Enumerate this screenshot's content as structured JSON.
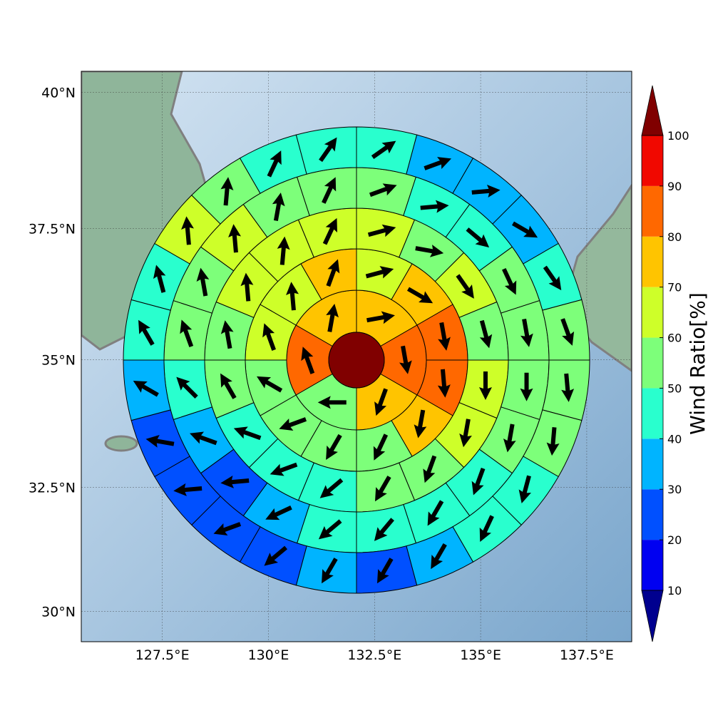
{
  "chart_data": {
    "type": "polar-map",
    "xlim": [
      125.59,
      138.56
    ],
    "ylim": [
      29.38,
      40.38
    ],
    "xticks": [
      {
        "value": 127.5,
        "label": "127.5°E"
      },
      {
        "value": 130,
        "label": "130°E"
      },
      {
        "value": 132.5,
        "label": "132.5°E"
      },
      {
        "value": 135,
        "label": "135°E"
      },
      {
        "value": 137.5,
        "label": "137.5°E"
      }
    ],
    "yticks": [
      {
        "value": 30,
        "label": "30°N"
      },
      {
        "value": 32.5,
        "label": "32.5°N"
      },
      {
        "value": 35,
        "label": "35°N"
      },
      {
        "value": 37.5,
        "label": "37.5°N"
      },
      {
        "value": 40,
        "label": "40°N"
      }
    ],
    "grid": true,
    "colorbar": {
      "label": "Wind Ratio[%]",
      "ticks": [
        10,
        20,
        30,
        40,
        50,
        60,
        70,
        80,
        90,
        100
      ],
      "under_color": "#00008f",
      "over_color": "#800000",
      "colors": [
        "#0000f1",
        "#0050ff",
        "#00b4ff",
        "#29ffce",
        "#7dff7a",
        "#ceff29",
        "#ffc400",
        "#ff6800",
        "#f10800"
      ]
    },
    "center": {
      "ratio": 105
    },
    "rings": [
      {
        "ratios": [
          75,
          85,
          75,
          55,
          85,
          75
        ],
        "directions": [
          80,
          170,
          200,
          270,
          340,
          10
        ]
      },
      {
        "ratios": [
          65,
          75,
          85,
          85,
          75,
          55,
          55,
          55,
          55,
          65,
          65,
          75
        ],
        "directions": [
          75,
          120,
          170,
          175,
          190,
          205,
          210,
          250,
          300,
          340,
          355,
          20
        ]
      },
      {
        "ratios": [
          65,
          55,
          65,
          55,
          65,
          65,
          55,
          55,
          45,
          45,
          45,
          55,
          55,
          65,
          65,
          65
        ],
        "directions": [
          75,
          100,
          145,
          165,
          180,
          190,
          200,
          210,
          230,
          250,
          290,
          330,
          350,
          355,
          5,
          25
        ]
      },
      {
        "ratios": [
          55,
          45,
          45,
          55,
          55,
          55,
          55,
          45,
          45,
          45,
          45,
          35,
          25,
          35,
          45,
          55,
          55,
          65,
          55,
          55
        ],
        "directions": [
          70,
          85,
          130,
          155,
          170,
          180,
          190,
          200,
          210,
          220,
          230,
          245,
          265,
          290,
          315,
          340,
          350,
          355,
          10,
          25
        ]
      },
      {
        "ratios": [
          45,
          35,
          35,
          35,
          45,
          55,
          55,
          55,
          45,
          45,
          35,
          25,
          35,
          25,
          25,
          25,
          25,
          35,
          45,
          45,
          65,
          55,
          45,
          45
        ],
        "directions": [
          55,
          70,
          85,
          120,
          145,
          160,
          175,
          185,
          195,
          205,
          210,
          210,
          210,
          230,
          250,
          265,
          280,
          300,
          330,
          345,
          355,
          5,
          25,
          35
        ]
      }
    ]
  }
}
